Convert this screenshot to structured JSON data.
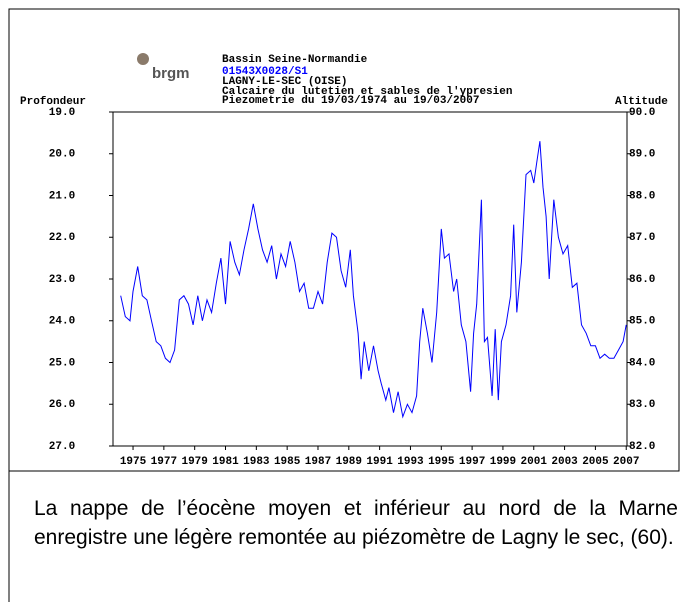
{
  "chart_data": {
    "type": "line",
    "logo": "brgm",
    "title": "Bassin Seine-Normandie",
    "subtitle": "01543X0028/S1",
    "lines": [
      "LAGNY-LE-SEC (OISE)",
      "Calcaire du lutetien et sables de l'ypresien",
      "Piezometrie du 19/03/1974 au 19/03/2007"
    ],
    "ylabel": "Profondeur",
    "y2label": "Altitude",
    "xlim": [
      1973.7,
      2007.05
    ],
    "xticks": [
      1975,
      1977,
      1979,
      1981,
      1983,
      1985,
      1987,
      1989,
      1991,
      1993,
      1995,
      1997,
      1999,
      2001,
      2003,
      2005,
      2007
    ],
    "ylim": [
      27,
      19
    ],
    "yticks": [
      {
        "value": 19,
        "label": "19.0"
      },
      {
        "value": 20,
        "label": "20.0"
      },
      {
        "value": 21,
        "label": "21.0"
      },
      {
        "value": 22,
        "label": "22.0"
      },
      {
        "value": 23,
        "label": "23.0"
      },
      {
        "value": 24,
        "label": "24.0"
      },
      {
        "value": 25,
        "label": "25.0"
      },
      {
        "value": 26,
        "label": "26.0"
      },
      {
        "value": 27,
        "label": "27.0"
      }
    ],
    "y2lim": [
      82,
      90
    ],
    "y2ticks": [
      {
        "value": 90,
        "label": "90.0"
      },
      {
        "value": 89,
        "label": "89.0"
      },
      {
        "value": 88,
        "label": "88.0"
      },
      {
        "value": 87,
        "label": "87.0"
      },
      {
        "value": 86,
        "label": "86.0"
      },
      {
        "value": 85,
        "label": "85.0"
      },
      {
        "value": 84,
        "label": "84.0"
      },
      {
        "value": 83,
        "label": "83.0"
      },
      {
        "value": 82,
        "label": "82.0"
      }
    ],
    "x": [
      1974.2,
      1974.5,
      1974.8,
      1975.0,
      1975.3,
      1975.6,
      1975.9,
      1976.2,
      1976.5,
      1976.8,
      1977.1,
      1977.4,
      1977.7,
      1978.0,
      1978.3,
      1978.6,
      1978.9,
      1979.2,
      1979.5,
      1979.8,
      1980.1,
      1980.4,
      1980.7,
      1981.0,
      1981.3,
      1981.6,
      1981.9,
      1982.2,
      1982.5,
      1982.8,
      1983.1,
      1983.4,
      1983.7,
      1984.0,
      1984.3,
      1984.6,
      1984.9,
      1985.2,
      1985.5,
      1985.8,
      1986.1,
      1986.4,
      1986.7,
      1987.0,
      1987.3,
      1987.6,
      1987.9,
      1988.2,
      1988.5,
      1988.8,
      1989.1,
      1989.3,
      1989.6,
      1989.8,
      1990.0,
      1990.3,
      1990.6,
      1990.9,
      1991.1,
      1991.4,
      1991.6,
      1991.9,
      1992.2,
      1992.5,
      1992.8,
      1993.1,
      1993.4,
      1993.6,
      1993.8,
      1994.1,
      1994.4,
      1994.7,
      1995.0,
      1995.2,
      1995.5,
      1995.8,
      1996.0,
      1996.3,
      1996.6,
      1996.9,
      1997.1,
      1997.3,
      1997.6,
      1997.8,
      1998.0,
      1998.3,
      1998.5,
      1998.7,
      1998.9,
      1999.2,
      1999.5,
      1999.7,
      1999.9,
      2000.2,
      2000.5,
      2000.8,
      2001.0,
      2001.2,
      2001.4,
      2001.6,
      2001.8,
      2002.0,
      2002.3,
      2002.6,
      2002.9,
      2003.2,
      2003.5,
      2003.8,
      2004.1,
      2004.4,
      2004.7,
      2005.0,
      2005.3,
      2005.6,
      2005.9,
      2006.2,
      2006.5,
      2006.8,
      2007.0
    ],
    "series": [
      {
        "name": "Profondeur",
        "color": "#0000ff",
        "axis": "y",
        "values": [
          23.4,
          23.9,
          24.0,
          23.3,
          22.7,
          23.4,
          23.5,
          24.0,
          24.5,
          24.6,
          24.9,
          25.0,
          24.7,
          23.5,
          23.4,
          23.6,
          24.1,
          23.4,
          24.0,
          23.5,
          23.8,
          23.1,
          22.5,
          23.6,
          22.1,
          22.6,
          22.9,
          22.3,
          21.8,
          21.2,
          21.8,
          22.3,
          22.6,
          22.2,
          23.0,
          22.4,
          22.7,
          22.1,
          22.6,
          23.3,
          23.1,
          23.7,
          23.7,
          23.3,
          23.6,
          22.6,
          21.9,
          22.0,
          22.8,
          23.2,
          22.3,
          23.4,
          24.3,
          25.4,
          24.5,
          25.2,
          24.6,
          25.2,
          25.5,
          25.9,
          25.6,
          26.2,
          25.7,
          26.3,
          26.0,
          26.2,
          25.8,
          24.5,
          23.7,
          24.3,
          25.0,
          23.8,
          21.8,
          22.5,
          22.4,
          23.3,
          23.0,
          24.1,
          24.5,
          25.7,
          24.3,
          23.6,
          21.1,
          24.5,
          24.4,
          25.8,
          24.2,
          25.9,
          24.5,
          24.1,
          23.4,
          21.7,
          23.8,
          22.6,
          20.5,
          20.4,
          20.7,
          20.2,
          19.7,
          20.8,
          21.5,
          23.0,
          21.1,
          22.0,
          22.4,
          22.2,
          23.2,
          23.1,
          24.1,
          24.3,
          24.6,
          24.6,
          24.9,
          24.8,
          24.9,
          24.9,
          24.7,
          24.5,
          24.1
        ]
      }
    ]
  },
  "caption": "La nappe de l’éocène moyen et inférieur au nord de la Marne enregistre une légère remontée au piézomètre de Lagny le sec, (60)."
}
